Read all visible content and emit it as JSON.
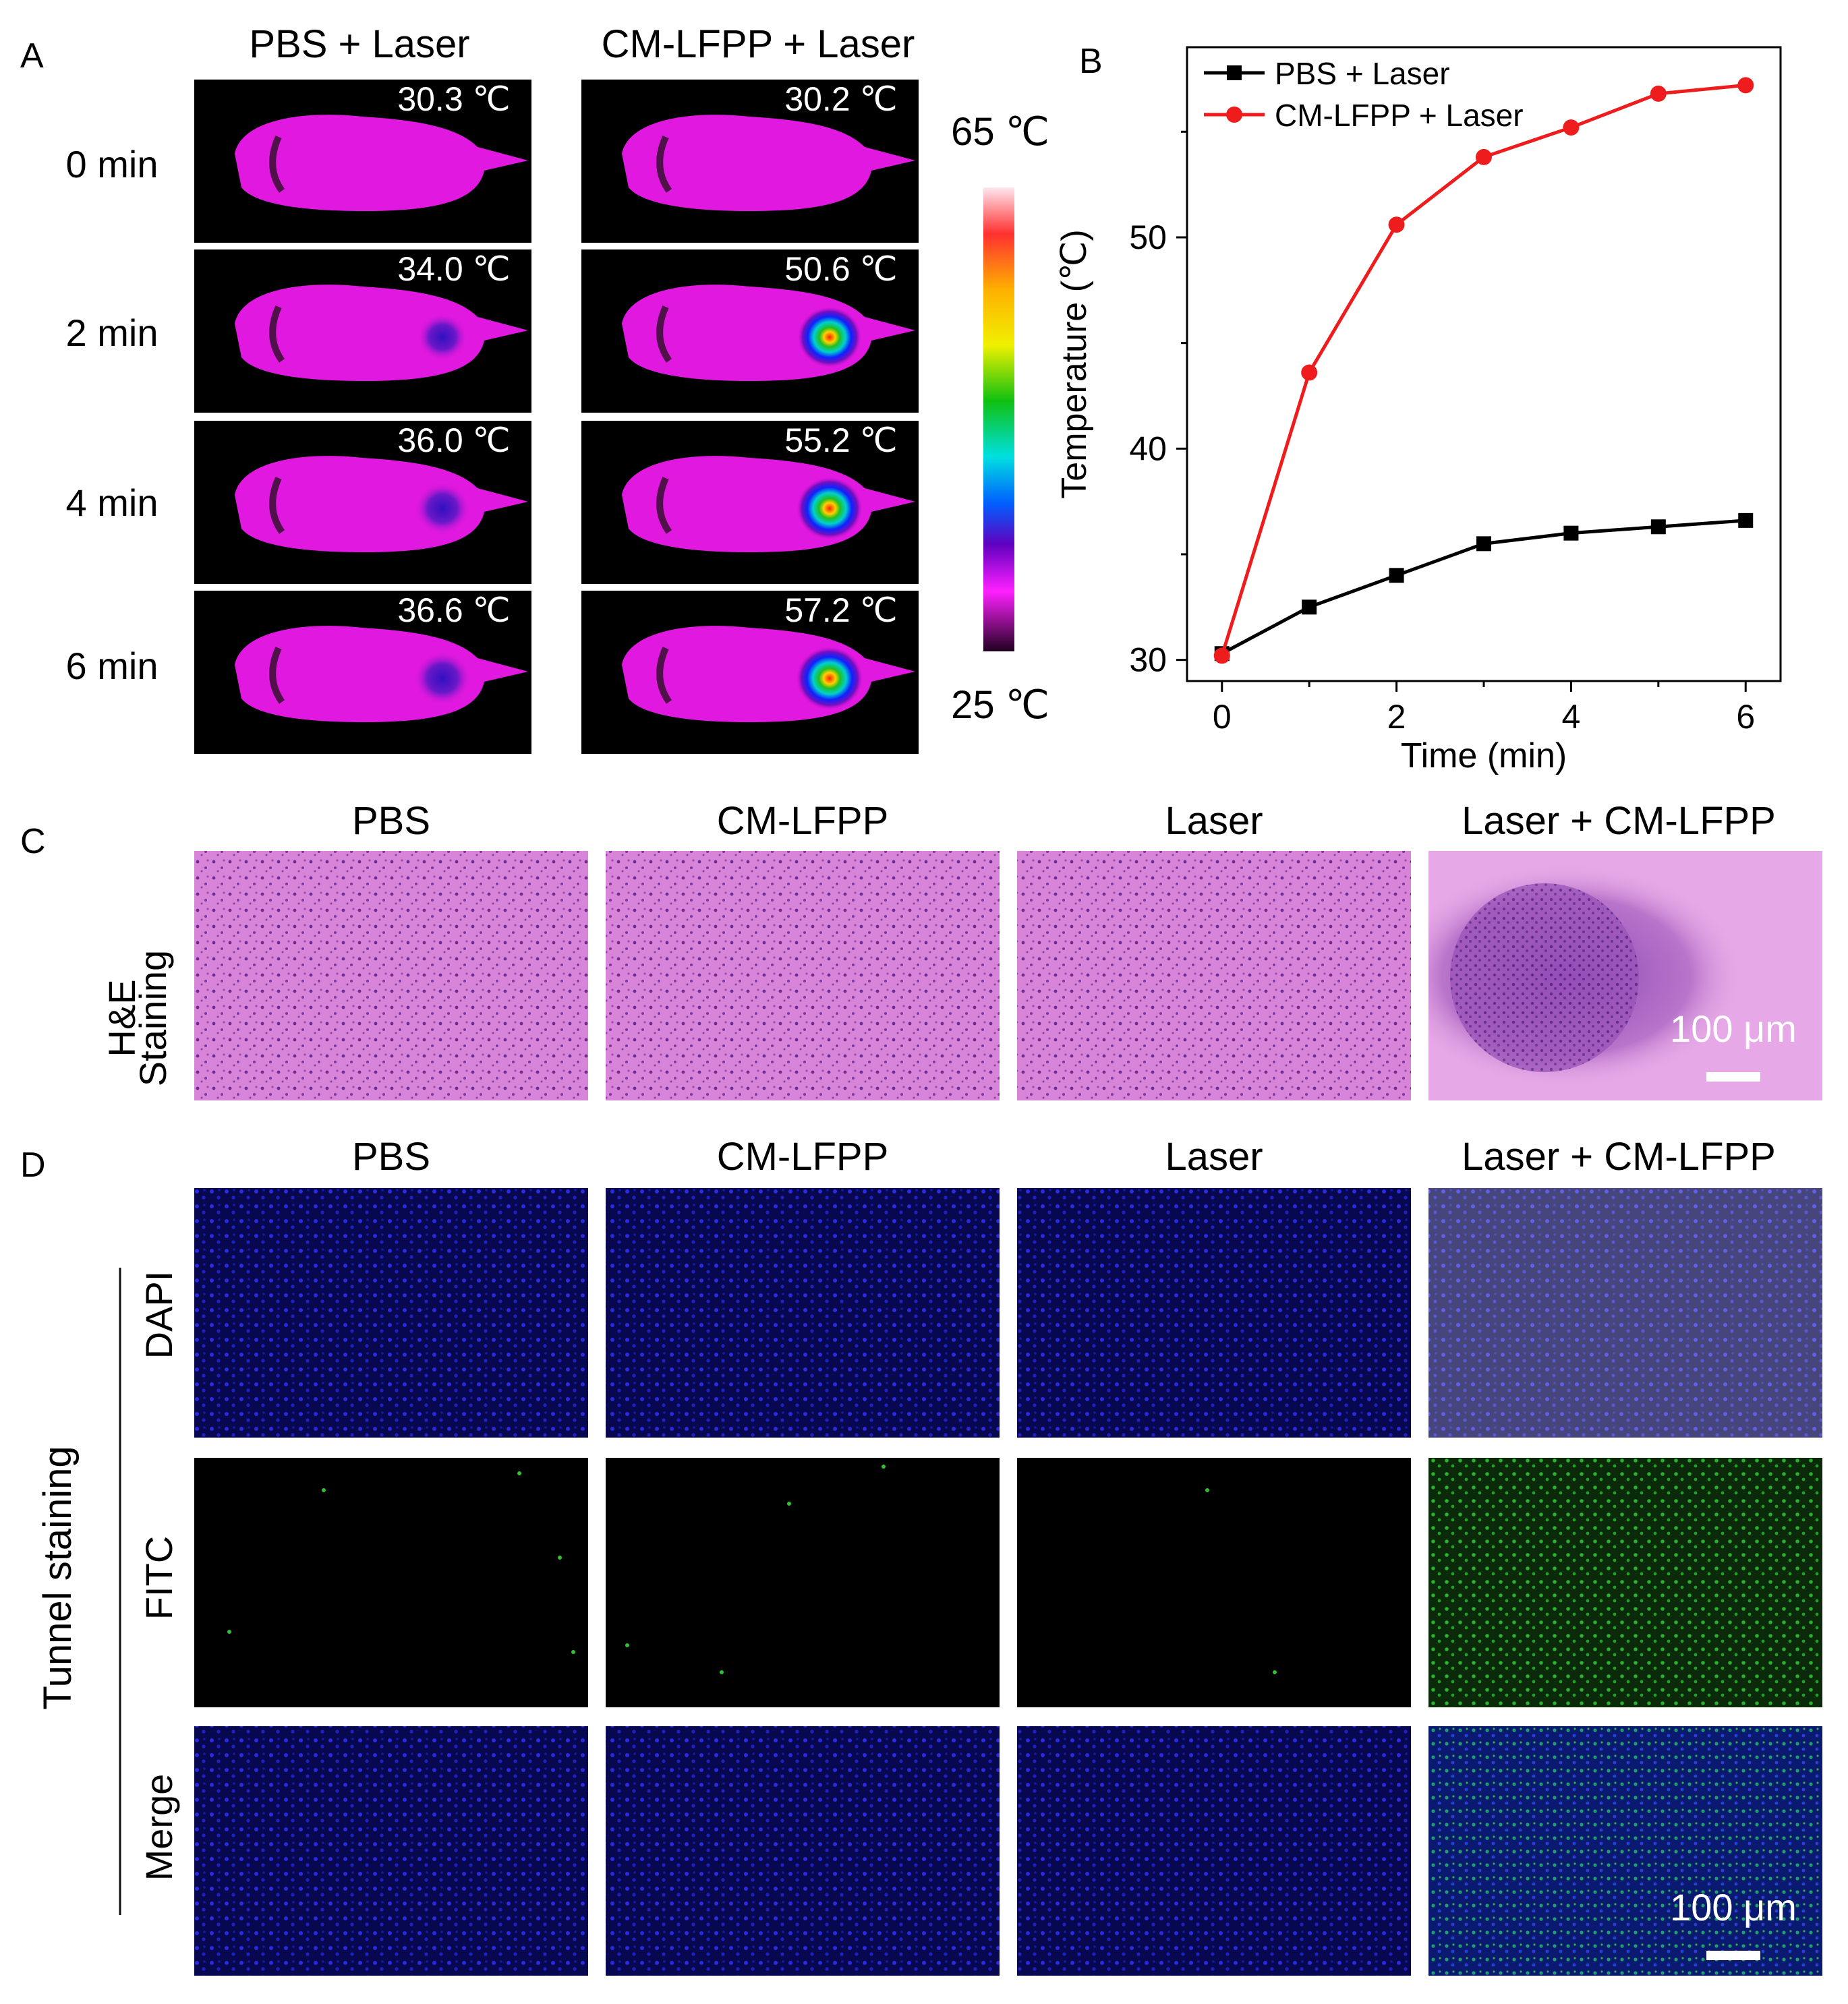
{
  "panel_letters": {
    "A": "A",
    "B": "B",
    "C": "C",
    "D": "D"
  },
  "panel_a": {
    "col_titles": [
      "PBS + Laser",
      "CM-LFPP  + Laser"
    ],
    "row_labels": [
      "0 min",
      "2 min",
      "4 min",
      "6 min"
    ],
    "temps": {
      "pbs": [
        "30.3 ℃",
        "34.0 ℃",
        "36.0 ℃",
        "36.6 ℃"
      ],
      "cm": [
        "30.2 ℃",
        "50.6 ℃",
        "55.2 ℃",
        "57.2 ℃"
      ]
    },
    "hotspot_level": {
      "pbs": [
        0,
        0.45,
        0.6,
        0.65
      ],
      "cm": [
        0,
        0.86,
        0.93,
        0.96
      ]
    },
    "colorbar": {
      "max_label": "65 ℃",
      "min_label": "25 ℃"
    }
  },
  "chart_data": {
    "type": "line",
    "xlabel": "Time (min)",
    "ylabel": "Temperature (℃)",
    "xlim": [
      -0.4,
      6.4
    ],
    "ylim": [
      29,
      59
    ],
    "xticks": [
      0,
      2,
      4,
      6
    ],
    "yticks": [
      30,
      40,
      50
    ],
    "legend_position": "top-left",
    "grid": false,
    "series": [
      {
        "name": "PBS + Laser",
        "color": "#000000",
        "marker": "square",
        "x": [
          0,
          1,
          2,
          3,
          4,
          5,
          6
        ],
        "y": [
          30.3,
          32.5,
          34.0,
          35.5,
          36.0,
          36.3,
          36.6
        ]
      },
      {
        "name": "CM-LFPP + Laser",
        "color": "#ee1c1c",
        "marker": "circle",
        "x": [
          0,
          1,
          2,
          3,
          4,
          5,
          6
        ],
        "y": [
          30.2,
          43.6,
          50.6,
          53.8,
          55.2,
          56.8,
          57.2
        ]
      }
    ]
  },
  "panel_c": {
    "col_titles": [
      "PBS",
      "CM-LFPP",
      "Laser",
      "Laser + CM-LFPP"
    ],
    "row_label_line1": "H&E",
    "row_label_line2": "Staining",
    "scale_label": "100 μm"
  },
  "panel_d": {
    "col_titles": [
      "PBS",
      "CM-LFPP",
      "Laser",
      "Laser + CM-LFPP"
    ],
    "group_label": "Tunnel staining",
    "row_labels": [
      "DAPI",
      "FITC",
      "Merge"
    ],
    "scale_label": "100 μm"
  }
}
